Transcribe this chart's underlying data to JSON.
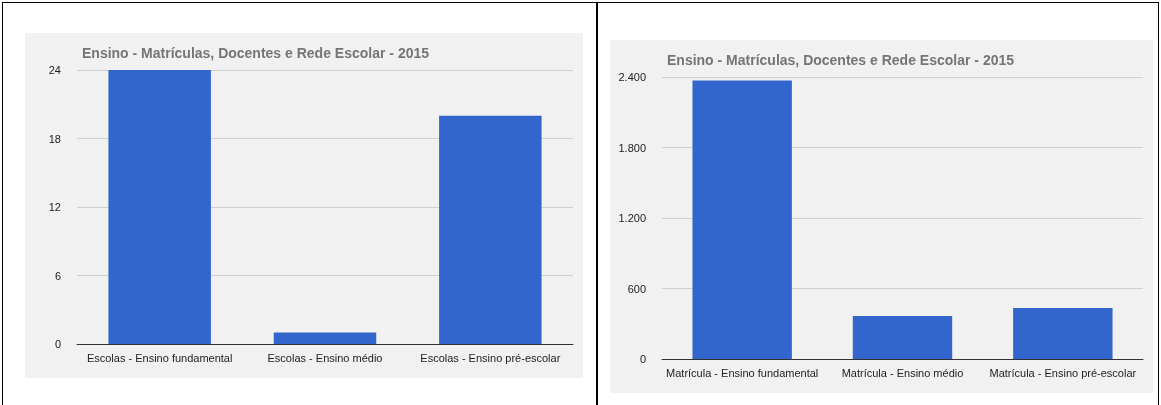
{
  "chart_data": [
    {
      "type": "bar",
      "title": "Ensino - Matrículas, Docentes e Rede Escolar - 2015",
      "categories": [
        "Escolas - Ensino fundamental",
        "Escolas - Ensino médio",
        "Escolas - Ensino pré-escolar"
      ],
      "values": [
        24,
        1,
        20
      ],
      "color": "#3366cc",
      "ylim": [
        0,
        24
      ],
      "yticks": [
        0,
        6,
        12,
        18,
        24
      ],
      "grid": "y"
    },
    {
      "type": "bar",
      "title": "Ensino - Matrículas, Docentes e Rede Escolar - 2015",
      "categories": [
        "Matrícula - Ensino fundamental",
        "Matrícula - Ensino médio",
        "Matrícula - Ensino pré-escolar"
      ],
      "values": [
        2370,
        365,
        435
      ],
      "color": "#3366cc",
      "ylim": [
        0,
        2400
      ],
      "yticks": [
        0,
        {
          "value": 600,
          "label": "600"
        },
        {
          "value": 1200,
          "label": "1.200"
        },
        {
          "value": 1800,
          "label": "1.800"
        },
        {
          "value": 2400,
          "label": "2.400"
        }
      ],
      "grid": "y"
    }
  ]
}
